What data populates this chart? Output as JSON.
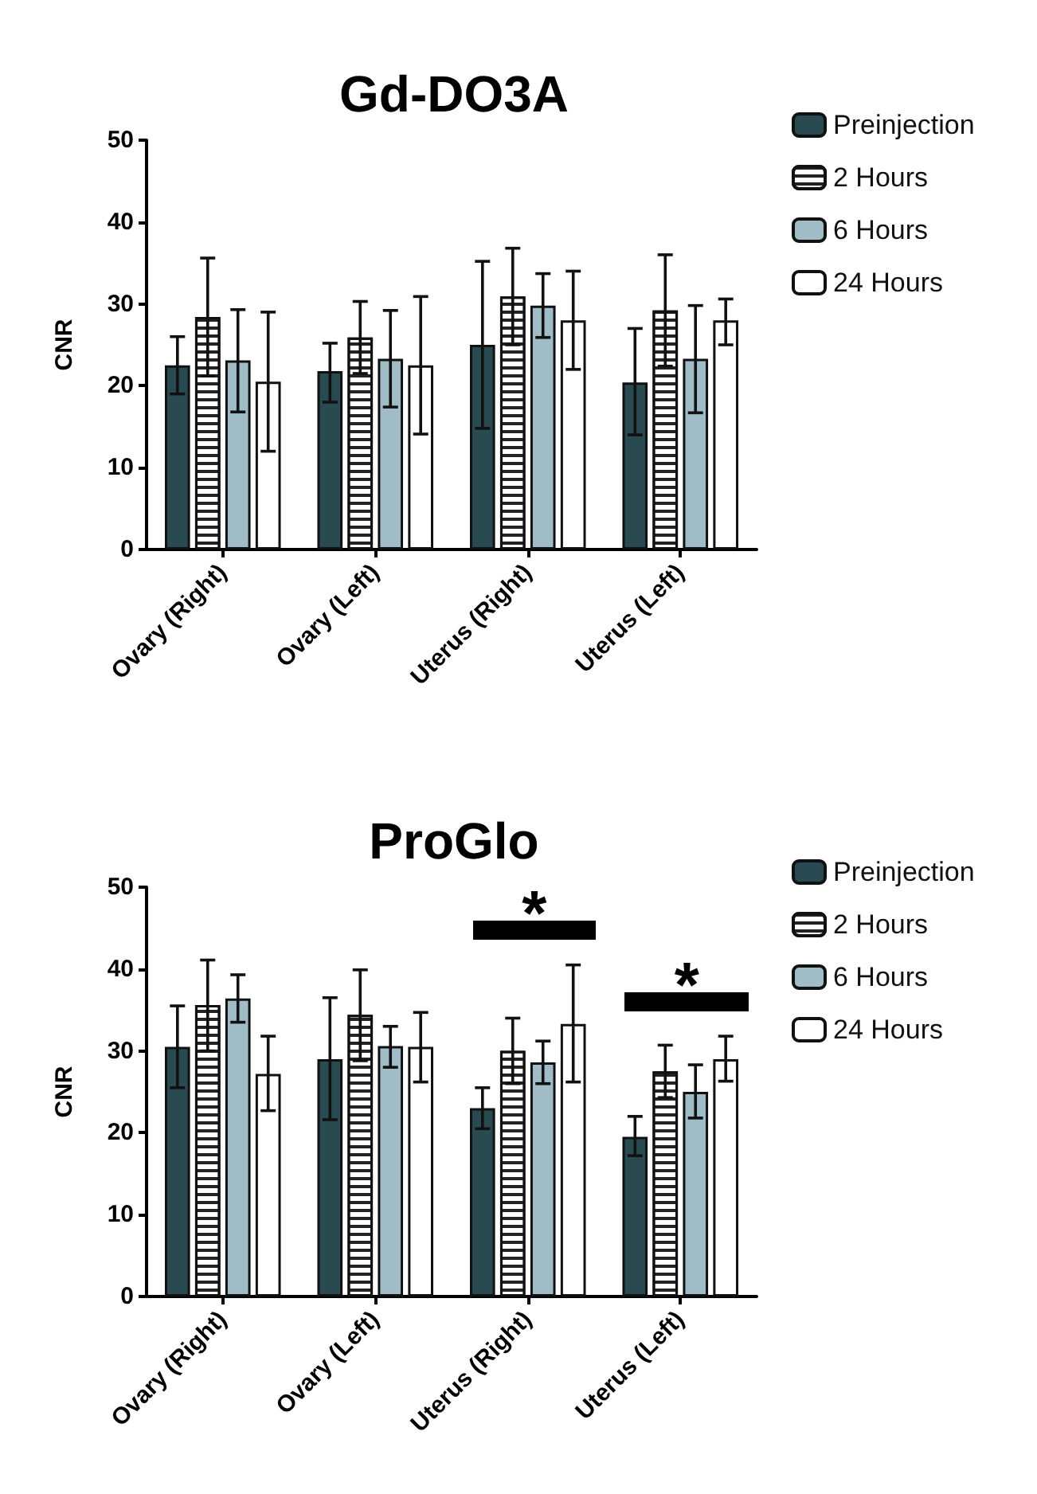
{
  "chart_data": [
    {
      "type": "bar",
      "title": "Gd-DO3A",
      "ylabel": "CNR",
      "categories": [
        "Ovary (Right)",
        "Ovary (Left)",
        "Uterus (Right)",
        "Uterus (Left)"
      ],
      "ylim": [
        0,
        50
      ],
      "yticks": [
        0,
        10,
        20,
        30,
        40,
        50
      ],
      "grid": false,
      "legend": "top right",
      "series": [
        {
          "name": "Preinjection",
          "color": "#2a4a52",
          "values": [
            22.5,
            21.8,
            25,
            20.4
          ],
          "errors": [
            [
              19,
              26
            ],
            [
              18,
              25.2
            ],
            [
              14.8,
              35.2
            ],
            [
              14,
              27
            ]
          ]
        },
        {
          "name": "2 Hours",
          "color": "#ffffff",
          "values": [
            28.4,
            25.9,
            30.9,
            29.2
          ],
          "errors": [
            [
              21.2,
              35.6
            ],
            [
              21.5,
              30.3
            ],
            [
              25,
              36.8
            ],
            [
              22.4,
              36
            ]
          ]
        },
        {
          "name": "6 Hours",
          "color": "#a0bcc6",
          "values": [
            23.1,
            23.3,
            29.8,
            23.3
          ],
          "errors": [
            [
              16.8,
              29.3
            ],
            [
              17.4,
              29.2
            ],
            [
              25.9,
              33.7
            ],
            [
              16.7,
              29.8
            ]
          ]
        },
        {
          "name": "24 Hours",
          "color": "#ffffff",
          "values": [
            20.5,
            22.5,
            28,
            28
          ],
          "errors": [
            [
              12,
              29
            ],
            [
              14.1,
              30.9
            ],
            [
              22,
              34
            ],
            [
              25,
              30.6
            ]
          ]
        }
      ]
    },
    {
      "type": "bar",
      "title": "ProGlo",
      "ylabel": "CNR",
      "categories": [
        "Ovary (Right)",
        "Ovary (Left)",
        "Uterus (Right)",
        "Uterus (Left)"
      ],
      "ylim": [
        0,
        50
      ],
      "yticks": [
        0,
        10,
        20,
        30,
        40,
        50
      ],
      "grid": false,
      "legend": "top right",
      "annotations": [
        "*",
        "*"
      ],
      "series": [
        {
          "name": "Preinjection",
          "color": "#2a4a52",
          "values": [
            30.5,
            29,
            23,
            19.5
          ],
          "errors": [
            [
              25.5,
              35.5
            ],
            [
              21.6,
              36.5
            ],
            [
              20.5,
              25.5
            ],
            [
              17.2,
              22
            ]
          ]
        },
        {
          "name": "2 Hours",
          "color": "#ffffff",
          "values": [
            35.6,
            34.4,
            30,
            27.5
          ],
          "errors": [
            [
              30,
              41.1
            ],
            [
              28.8,
              39.9
            ],
            [
              26,
              34
            ],
            [
              24.3,
              30.7
            ]
          ]
        },
        {
          "name": "6 Hours",
          "color": "#a0bcc6",
          "values": [
            36.4,
            30.6,
            28.6,
            25
          ],
          "errors": [
            [
              33.5,
              39.3
            ],
            [
              28,
              33
            ],
            [
              26,
              31.2
            ],
            [
              21.8,
              28.3
            ]
          ]
        },
        {
          "name": "24 Hours",
          "color": "#ffffff",
          "values": [
            27.2,
            30.5,
            33.3,
            29
          ],
          "errors": [
            [
              22.7,
              31.8
            ],
            [
              26.2,
              34.7
            ],
            [
              26.2,
              40.5
            ],
            [
              26.3,
              31.8
            ]
          ]
        }
      ]
    }
  ]
}
